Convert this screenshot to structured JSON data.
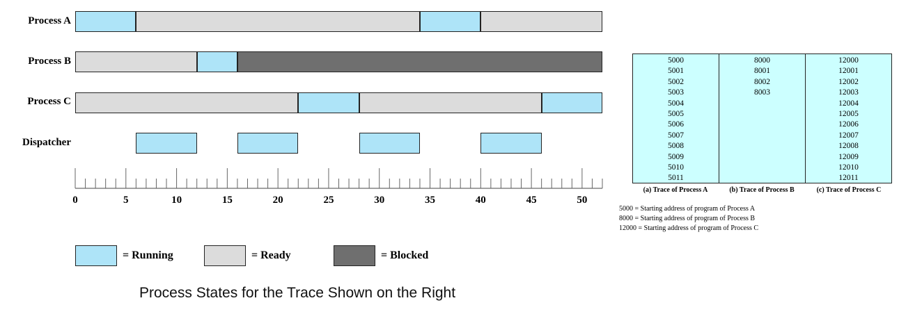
{
  "diagram": {
    "processes": [
      {
        "label": "Process A",
        "segments": [
          {
            "start": 0,
            "end": 6,
            "state": "running"
          },
          {
            "start": 6,
            "end": 34,
            "state": "ready"
          },
          {
            "start": 34,
            "end": 40,
            "state": "running"
          },
          {
            "start": 40,
            "end": 52,
            "state": "ready"
          }
        ]
      },
      {
        "label": "Process B",
        "segments": [
          {
            "start": 0,
            "end": 12,
            "state": "ready"
          },
          {
            "start": 12,
            "end": 16,
            "state": "running"
          },
          {
            "start": 16,
            "end": 52,
            "state": "blocked"
          }
        ]
      },
      {
        "label": "Process C",
        "segments": [
          {
            "start": 0,
            "end": 22,
            "state": "ready"
          },
          {
            "start": 22,
            "end": 28,
            "state": "running"
          },
          {
            "start": 28,
            "end": 46,
            "state": "ready"
          },
          {
            "start": 46,
            "end": 52,
            "state": "running"
          }
        ]
      },
      {
        "label": "Dispatcher",
        "segments": [
          {
            "start": 6,
            "end": 12,
            "state": "running"
          },
          {
            "start": 16,
            "end": 22,
            "state": "running"
          },
          {
            "start": 28,
            "end": 34,
            "state": "running"
          },
          {
            "start": 40,
            "end": 46,
            "state": "running"
          }
        ]
      }
    ],
    "axis": {
      "min": 0,
      "max": 52,
      "tick_labels": [
        "0",
        "5",
        "10",
        "15",
        "20",
        "25",
        "30",
        "35",
        "40",
        "45",
        "50"
      ]
    },
    "legend": {
      "running": "= Running",
      "ready": "= Ready",
      "blocked": "= Blocked"
    },
    "colors": {
      "running": "#aee4f8",
      "ready": "#dcdcdc",
      "blocked": "#6f6f6f",
      "trace_bg": "#ccffff"
    },
    "caption": "Process States for the Trace Shown on the Right"
  },
  "trace": {
    "columns": [
      {
        "values": [
          "5000",
          "5001",
          "5002",
          "5003",
          "5004",
          "5005",
          "5006",
          "5007",
          "5008",
          "5009",
          "5010",
          "5011"
        ],
        "label": "(a) Trace of Process A"
      },
      {
        "values": [
          "8000",
          "8001",
          "8002",
          "8003"
        ],
        "label": "(b) Trace of Process B"
      },
      {
        "values": [
          "12000",
          "12001",
          "12002",
          "12003",
          "12004",
          "12005",
          "12006",
          "12007",
          "12008",
          "12009",
          "12010",
          "12011"
        ],
        "label": "(c) Trace of Process C"
      }
    ],
    "notes": [
      "5000 = Starting address of program of Process A",
      "8000 = Starting address of program of Process B",
      "12000 = Starting address of program of Process C"
    ]
  }
}
